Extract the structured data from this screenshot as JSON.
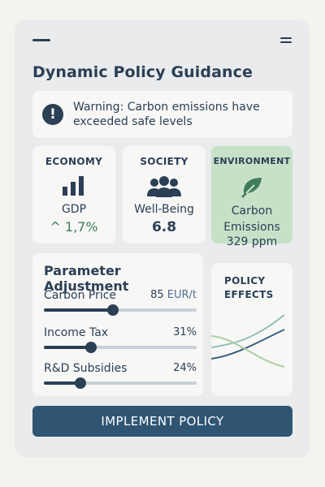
{
  "header": {
    "title": "Dynamic Policy Guidance"
  },
  "warning": {
    "icon": "exclamation-icon",
    "text": "Warning: Carbon emissions have exceeded safe levels"
  },
  "metrics": [
    {
      "title": "ECONOMY",
      "icon": "bar-chart-icon",
      "label": "GDP",
      "value": "^ 1,7%"
    },
    {
      "title": "SOCIETY",
      "icon": "people-icon",
      "label": "Well-Being",
      "value": "6.8"
    },
    {
      "title": "ENVIRONMENT",
      "icon": "leaf-icon",
      "label": "Carbon Emissions",
      "value": "329 ppm"
    }
  ],
  "parameters": {
    "title": "Parameter Adjustment",
    "items": [
      {
        "label": "Carbon Price",
        "value": "85",
        "unit": "EUR/t",
        "level": 0.45
      },
      {
        "label": "Income Tax",
        "value": "31%",
        "unit": "",
        "level": 0.31
      },
      {
        "label": "R&D Subsidies",
        "value": "24%",
        "unit": "",
        "level": 0.24
      }
    ]
  },
  "effects": {
    "title_line1": "POLICY",
    "title_line2": "EFFECTS"
  },
  "actions": {
    "implement_label": "IMPLEMENT POLICY"
  },
  "colors": {
    "primary": "#2b3f55",
    "button": "#2f5572",
    "environment_bg": "#c7e1c8",
    "accent_green": "#3f7c5c",
    "line_light": "#8fbfb7",
    "line_green": "#a9cfa5"
  }
}
